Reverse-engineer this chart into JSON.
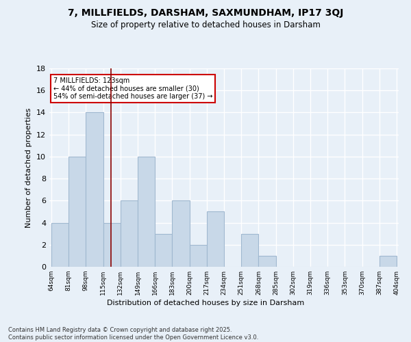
{
  "title": "7, MILLFIELDS, DARSHAM, SAXMUNDHAM, IP17 3QJ",
  "subtitle": "Size of property relative to detached houses in Darsham",
  "xlabel": "Distribution of detached houses by size in Darsham",
  "ylabel": "Number of detached properties",
  "bins": [
    64,
    81,
    98,
    115,
    132,
    149,
    166,
    183,
    200,
    217,
    234,
    251,
    268,
    285,
    302,
    319,
    336,
    353,
    370,
    387,
    404
  ],
  "counts": [
    4,
    10,
    14,
    4,
    6,
    10,
    3,
    6,
    2,
    5,
    0,
    3,
    1,
    0,
    0,
    0,
    0,
    0,
    0,
    1
  ],
  "bar_color": "#c8d8e8",
  "bar_edge_color": "#a0b8d0",
  "property_line_x": 123,
  "property_line_color": "#8b0000",
  "annotation_text": "7 MILLFIELDS: 123sqm\n← 44% of detached houses are smaller (30)\n54% of semi-detached houses are larger (37) →",
  "annotation_box_color": "white",
  "annotation_box_edge_color": "#cc0000",
  "footnote": "Contains HM Land Registry data © Crown copyright and database right 2025.\nContains public sector information licensed under the Open Government Licence v3.0.",
  "ylim": [
    0,
    18
  ],
  "yticks": [
    0,
    2,
    4,
    6,
    8,
    10,
    12,
    14,
    16,
    18
  ],
  "background_color": "#e8f0f8",
  "grid_color": "white"
}
